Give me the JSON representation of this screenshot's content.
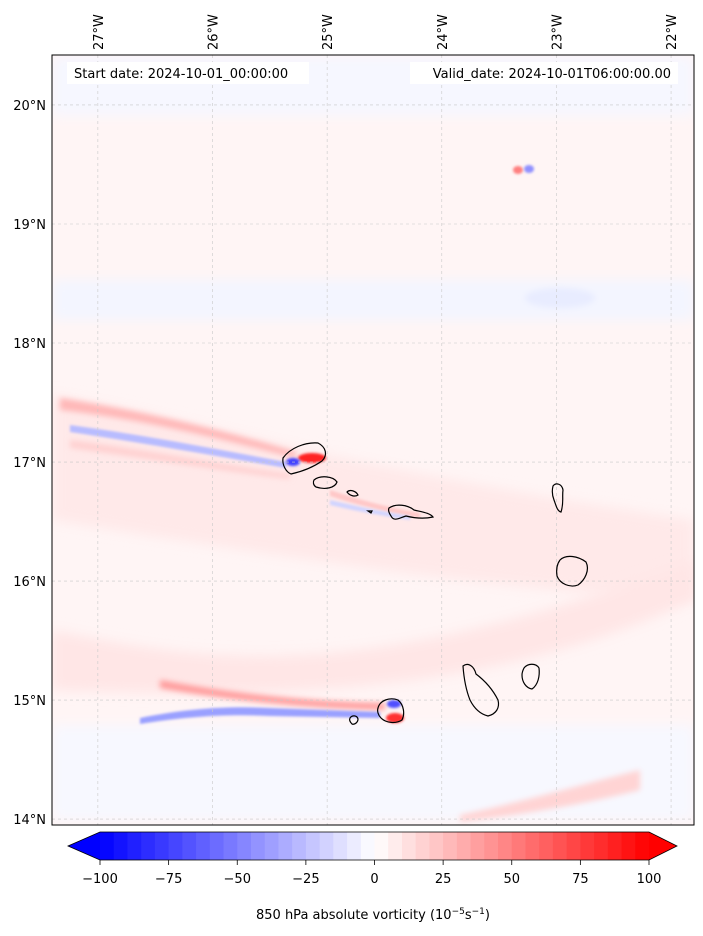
{
  "map": {
    "start_date": "Start date: 2024-10-01_00:00:00",
    "valid_date": "Valid_date: 2024-10-01T06:00:00.00",
    "lon_labels": [
      "27°W",
      "26°W",
      "25°W",
      "24°W",
      "23°W",
      "22°W"
    ],
    "lon_values": [
      -27,
      -26,
      -25,
      -24,
      -23,
      -22
    ],
    "lat_labels": [
      "20°N",
      "19°N",
      "18°N",
      "17°N",
      "16°N",
      "15°N",
      "14°N"
    ],
    "lat_values": [
      20,
      19,
      18,
      17,
      16,
      15,
      14
    ],
    "extent": {
      "lon": [
        -27.4,
        -21.8
      ],
      "lat": [
        13.95,
        20.42
      ]
    },
    "gridlines": true,
    "variable": "850 hPa absolute vorticity",
    "units": "10^-5 s^-1"
  },
  "colorbar": {
    "label": "850 hPa absolute vorticity (10",
    "label_exp": "−5",
    "label_unit": "s",
    "label_unit_exp": "−1",
    "label_close": ")",
    "ticks": [
      "−100",
      "−75",
      "−50",
      "−25",
      "0",
      "25",
      "50",
      "75",
      "100"
    ],
    "tick_values": [
      -100,
      -75,
      -50,
      -25,
      0,
      25,
      50,
      75,
      100
    ],
    "range": [
      -100,
      100
    ],
    "levels": 40,
    "colormap": "bwr",
    "color_low": "#0000ff",
    "color_mid": "#ffffff",
    "color_high": "#ff0000",
    "extend": "both"
  },
  "colors": {
    "background_field": "#fff4f4",
    "coastline": "#000000",
    "grid": "#c8c8c8"
  }
}
